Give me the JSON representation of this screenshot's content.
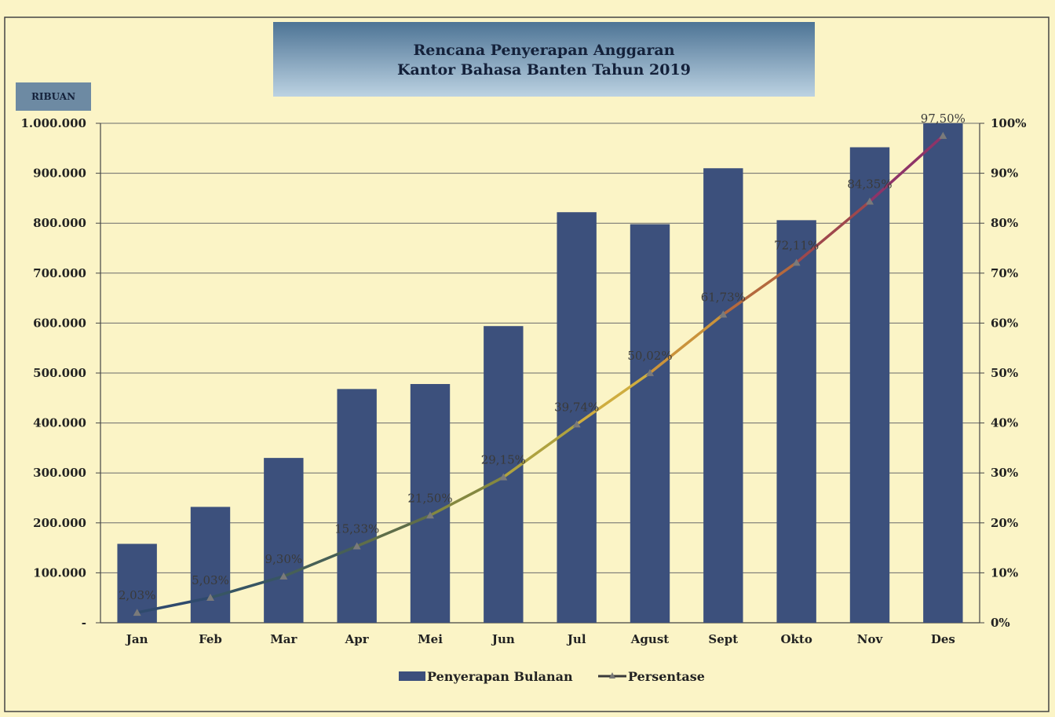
{
  "header_fragment": "",
  "title": {
    "line1": "Rencana Penyerapan Anggaran",
    "line2": "Kantor Bahasa Banten Tahun 2019"
  },
  "unit_label": "RIBUAN",
  "colors": {
    "background": "#fbf4c6",
    "bar": "#3c507c",
    "line_start": "#2f4a6d",
    "line_end": "#8e3468",
    "title_box_top": "#4d7495",
    "title_box_bottom": "#bcd2e2",
    "grid": "#6a6a6a"
  },
  "chart_data": {
    "type": "bar",
    "categories": [
      "Jan",
      "Feb",
      "Mar",
      "Apr",
      "Mei",
      "Jun",
      "Jul",
      "Agust",
      "Sept",
      "Okto",
      "Nov",
      "Des"
    ],
    "series": [
      {
        "name": "Penyerapan Bulanan",
        "type": "bar",
        "axis": "left",
        "values": [
          158000,
          232000,
          330000,
          468000,
          478000,
          594000,
          822000,
          798000,
          910000,
          806000,
          952000,
          1000000
        ]
      },
      {
        "name": "Persentase",
        "type": "line",
        "axis": "right",
        "values": [
          2.03,
          5.03,
          9.3,
          15.33,
          21.5,
          29.15,
          39.74,
          50.02,
          61.73,
          72.11,
          84.35,
          97.5
        ],
        "labels": [
          "2,03%",
          "5,03%",
          "9,30%",
          "15,33%",
          "21,50%",
          "29,15%",
          "39,74%",
          "50,02%",
          "61,73%",
          "72,11%",
          "84,35%",
          "97,50%"
        ]
      }
    ],
    "y_left": {
      "min": 0,
      "max": 1000000,
      "ticks": [
        "-",
        "100.000",
        "200.000",
        "300.000",
        "400.000",
        "500.000",
        "600.000",
        "700.000",
        "800.000",
        "900.000",
        "1.000.000"
      ]
    },
    "y_right": {
      "min": 0,
      "max": 100,
      "ticks": [
        "0%",
        "10%",
        "20%",
        "30%",
        "40%",
        "50%",
        "60%",
        "70%",
        "80%",
        "90%",
        "100%"
      ]
    },
    "grid": true,
    "legend_position": "bottom",
    "legend": [
      "Penyerapan Bulanan",
      "Persentase"
    ]
  }
}
